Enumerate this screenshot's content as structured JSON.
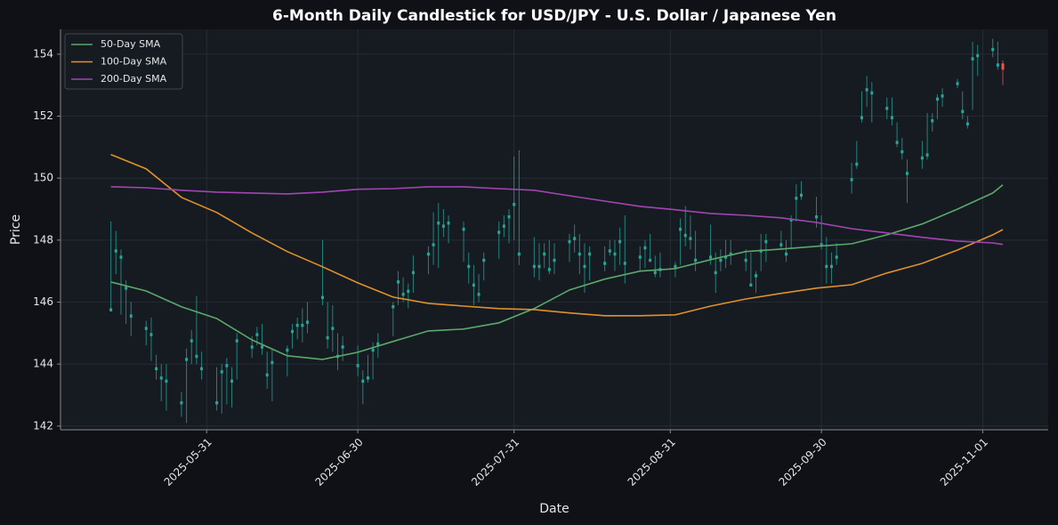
{
  "chart_data": {
    "type": "candlestick",
    "title": "6-Month Daily Candlestick for USD/JPY - U.S. Dollar / Japanese Yen",
    "x_label": "Date",
    "y_label": "Price",
    "x": [
      "2025-05-12",
      "2025-05-13",
      "2025-05-14",
      "2025-05-15",
      "2025-05-16",
      "2025-05-19",
      "2025-05-20",
      "2025-05-21",
      "2025-05-22",
      "2025-05-23",
      "2025-05-26",
      "2025-05-27",
      "2025-05-28",
      "2025-05-29",
      "2025-05-30",
      "2025-06-02",
      "2025-06-03",
      "2025-06-04",
      "2025-06-05",
      "2025-06-06",
      "2025-06-09",
      "2025-06-10",
      "2025-06-11",
      "2025-06-12",
      "2025-06-13",
      "2025-06-16",
      "2025-06-17",
      "2025-06-18",
      "2025-06-19",
      "2025-06-20",
      "2025-06-23",
      "2025-06-24",
      "2025-06-25",
      "2025-06-26",
      "2025-06-27",
      "2025-06-30",
      "2025-07-01",
      "2025-07-02",
      "2025-07-03",
      "2025-07-04",
      "2025-07-07",
      "2025-07-08",
      "2025-07-09",
      "2025-07-10",
      "2025-07-11",
      "2025-07-14",
      "2025-07-15",
      "2025-07-16",
      "2025-07-17",
      "2025-07-18",
      "2025-07-21",
      "2025-07-22",
      "2025-07-23",
      "2025-07-24",
      "2025-07-25",
      "2025-07-28",
      "2025-07-29",
      "2025-07-30",
      "2025-07-31",
      "2025-08-01",
      "2025-08-04",
      "2025-08-05",
      "2025-08-06",
      "2025-08-07",
      "2025-08-08",
      "2025-08-11",
      "2025-08-12",
      "2025-08-13",
      "2025-08-14",
      "2025-08-15",
      "2025-08-18",
      "2025-08-19",
      "2025-08-20",
      "2025-08-21",
      "2025-08-22",
      "2025-08-25",
      "2025-08-26",
      "2025-08-27",
      "2025-08-28",
      "2025-08-29",
      "2025-09-01",
      "2025-09-02",
      "2025-09-03",
      "2025-09-04",
      "2025-09-05",
      "2025-09-08",
      "2025-09-09",
      "2025-09-10",
      "2025-09-11",
      "2025-09-12",
      "2025-09-15",
      "2025-09-16",
      "2025-09-17",
      "2025-09-18",
      "2025-09-19",
      "2025-09-22",
      "2025-09-23",
      "2025-09-24",
      "2025-09-25",
      "2025-09-26",
      "2025-09-29",
      "2025-09-30",
      "2025-10-01",
      "2025-10-02",
      "2025-10-03",
      "2025-10-06",
      "2025-10-07",
      "2025-10-08",
      "2025-10-09",
      "2025-10-10",
      "2025-10-13",
      "2025-10-14",
      "2025-10-15",
      "2025-10-16",
      "2025-10-17",
      "2025-10-20",
      "2025-10-21",
      "2025-10-22",
      "2025-10-23",
      "2025-10-24",
      "2025-10-27",
      "2025-10-28",
      "2025-10-29",
      "2025-10-30",
      "2025-10-31",
      "2025-11-03",
      "2025-11-04",
      "2025-11-05"
    ],
    "open": [
      145.7,
      147.6,
      147.4,
      146.4,
      145.5,
      145.1,
      144.9,
      143.8,
      143.5,
      143.4,
      142.7,
      144.1,
      144.7,
      144.2,
      143.8,
      142.7,
      143.7,
      143.9,
      143.4,
      144.7,
      144.5,
      144.9,
      144.5,
      143.6,
      144.0,
      144.4,
      145.0,
      145.2,
      145.2,
      145.3,
      146.1,
      144.8,
      145.1,
      144.2,
      144.5,
      143.9,
      143.4,
      143.5,
      144.4,
      144.6,
      145.8,
      146.6,
      146.2,
      146.3,
      146.9,
      147.5,
      147.8,
      148.5,
      148.4,
      148.5,
      148.3,
      147.1,
      146.5,
      146.2,
      147.3,
      148.2,
      148.4,
      148.7,
      149.1,
      147.5,
      147.1,
      147.1,
      147.5,
      147.0,
      147.3,
      147.9,
      148.0,
      147.5,
      147.1,
      147.5,
      147.2,
      147.6,
      147.5,
      147.9,
      147.2,
      147.4,
      147.7,
      147.3,
      146.9,
      147.0,
      147.1,
      148.3,
      148.1,
      148.0,
      147.3,
      147.4,
      146.9,
      147.3,
      147.4,
      147.5,
      147.3,
      146.5,
      146.8,
      147.6,
      147.9,
      147.8,
      147.5,
      148.6,
      149.3,
      149.4,
      148.7,
      147.8,
      147.1,
      147.1,
      147.4,
      149.9,
      150.4,
      151.9,
      152.8,
      152.7,
      152.2,
      151.9,
      151.1,
      150.8,
      150.1,
      150.6,
      150.7,
      151.8,
      152.5,
      152.6,
      153.0,
      152.1,
      151.7,
      153.8,
      153.9,
      154.1,
      153.6,
      153.7
    ],
    "high": [
      148.6,
      148.3,
      147.7,
      146.7,
      146.0,
      145.4,
      145.5,
      144.3,
      144.0,
      144.0,
      143.1,
      144.5,
      145.1,
      146.2,
      144.4,
      143.9,
      144.0,
      144.2,
      143.9,
      145.0,
      144.9,
      145.2,
      145.3,
      144.4,
      144.5,
      144.6,
      145.3,
      145.5,
      145.8,
      146.0,
      148.0,
      146.0,
      145.9,
      145.0,
      144.9,
      144.6,
      143.8,
      144.3,
      144.7,
      145.0,
      146.0,
      147.0,
      146.8,
      146.6,
      147.5,
      147.8,
      148.9,
      149.2,
      149.0,
      148.8,
      148.6,
      147.6,
      147.2,
      146.9,
      147.6,
      148.6,
      148.8,
      149.0,
      150.7,
      150.9,
      148.1,
      147.9,
      147.9,
      148.0,
      147.9,
      148.2,
      148.5,
      148.2,
      147.9,
      147.8,
      147.8,
      148.0,
      148.0,
      148.4,
      148.8,
      147.8,
      148.0,
      148.2,
      147.5,
      147.6,
      147.3,
      148.7,
      149.1,
      148.8,
      148.3,
      148.5,
      147.6,
      147.7,
      148.0,
      148.0,
      147.7,
      147.6,
      147.0,
      148.2,
      148.2,
      148.3,
      148.0,
      148.8,
      149.8,
      149.9,
      149.4,
      148.8,
      148.1,
      147.6,
      147.9,
      150.5,
      151.2,
      152.8,
      153.3,
      153.1,
      152.6,
      152.6,
      151.8,
      151.3,
      150.6,
      151.2,
      152.1,
      152.1,
      152.7,
      152.9,
      153.2,
      152.8,
      152.0,
      154.4,
      154.3,
      154.5,
      154.4,
      153.8
    ],
    "low": [
      145.7,
      146.9,
      145.6,
      145.3,
      144.9,
      144.6,
      144.1,
      143.5,
      142.8,
      142.5,
      142.3,
      142.1,
      144.0,
      144.0,
      143.5,
      142.5,
      142.4,
      142.7,
      142.6,
      143.5,
      144.2,
      144.6,
      144.3,
      143.2,
      142.8,
      143.6,
      144.5,
      144.8,
      144.7,
      145.0,
      145.9,
      144.5,
      144.4,
      143.8,
      144.1,
      143.6,
      142.7,
      143.4,
      143.5,
      144.2,
      144.9,
      145.9,
      146.0,
      145.8,
      146.3,
      146.9,
      147.2,
      147.1,
      148.1,
      147.9,
      147.3,
      146.6,
      145.9,
      146.0,
      146.7,
      147.4,
      148.1,
      147.9,
      148.0,
      147.2,
      146.8,
      146.7,
      147.1,
      146.9,
      146.9,
      147.3,
      147.6,
      146.9,
      146.3,
      146.7,
      147.0,
      147.5,
      147.0,
      147.2,
      146.6,
      147.0,
      147.1,
      147.3,
      146.8,
      146.8,
      146.8,
      147.2,
      147.8,
      147.7,
      147.0,
      147.2,
      146.3,
      147.0,
      147.1,
      147.2,
      147.0,
      146.5,
      146.3,
      147.0,
      147.3,
      147.7,
      147.3,
      147.7,
      148.6,
      149.3,
      148.4,
      147.7,
      146.6,
      146.6,
      147.2,
      149.5,
      150.3,
      151.8,
      152.3,
      151.8,
      151.9,
      151.7,
      151.0,
      150.6,
      149.2,
      150.3,
      150.6,
      151.5,
      151.9,
      152.3,
      152.9,
      151.9,
      151.6,
      152.2,
      153.3,
      153.9,
      153.5,
      153.0
    ],
    "close": [
      145.8,
      147.7,
      147.5,
      146.5,
      145.6,
      145.2,
      145.0,
      143.9,
      143.6,
      143.5,
      142.8,
      144.2,
      144.8,
      144.3,
      143.9,
      142.8,
      143.8,
      144.0,
      143.5,
      144.8,
      144.6,
      145.0,
      144.6,
      143.7,
      144.1,
      144.5,
      145.1,
      145.3,
      145.3,
      145.4,
      146.2,
      144.9,
      145.2,
      144.3,
      144.6,
      144.0,
      143.5,
      143.6,
      144.5,
      144.7,
      145.9,
      146.7,
      146.3,
      146.4,
      147.0,
      147.6,
      147.9,
      148.6,
      148.5,
      148.6,
      148.4,
      147.2,
      146.6,
      146.3,
      147.4,
      148.3,
      148.5,
      148.8,
      149.2,
      147.6,
      147.2,
      147.2,
      147.6,
      147.1,
      147.4,
      148.0,
      148.1,
      147.6,
      147.2,
      147.6,
      147.3,
      147.7,
      147.6,
      148.0,
      147.3,
      147.5,
      147.8,
      147.4,
      147.0,
      147.1,
      147.2,
      148.4,
      148.2,
      148.1,
      147.4,
      147.5,
      147.0,
      147.4,
      147.5,
      147.6,
      147.4,
      146.6,
      146.9,
      147.7,
      148.0,
      147.9,
      147.6,
      148.7,
      149.4,
      149.5,
      148.8,
      147.9,
      147.2,
      147.2,
      147.5,
      150.0,
      150.5,
      152.0,
      152.9,
      152.8,
      152.3,
      152.0,
      151.2,
      150.9,
      150.2,
      150.7,
      150.8,
      151.9,
      152.6,
      152.7,
      153.1,
      152.2,
      151.8,
      153.9,
      154.0,
      154.2,
      153.7,
      153.5
    ],
    "up_color": "#26a69a",
    "down_color": "#ef5350",
    "lines": [
      {
        "name": "50-Day SMA",
        "color": "#5aa86a",
        "x": [
          "2025-05-12",
          "2025-05-19",
          "2025-05-26",
          "2025-06-02",
          "2025-06-09",
          "2025-06-16",
          "2025-06-23",
          "2025-06-30",
          "2025-07-07",
          "2025-07-14",
          "2025-07-21",
          "2025-07-28",
          "2025-08-04",
          "2025-08-11",
          "2025-08-18",
          "2025-08-25",
          "2025-09-01",
          "2025-09-08",
          "2025-09-15",
          "2025-09-22",
          "2025-09-29",
          "2025-10-06",
          "2025-10-13",
          "2025-10-20",
          "2025-10-27",
          "2025-11-03",
          "2025-11-05"
        ],
        "values": [
          146.65,
          146.36,
          145.85,
          145.47,
          144.78,
          144.27,
          144.15,
          144.38,
          144.73,
          145.07,
          145.13,
          145.33,
          145.79,
          146.39,
          146.74,
          147.0,
          147.08,
          147.37,
          147.63,
          147.71,
          147.8,
          147.88,
          148.17,
          148.52,
          149.0,
          149.52,
          149.78
        ]
      },
      {
        "name": "100-Day SMA",
        "color": "#e0912b",
        "x": [
          "2025-05-12",
          "2025-05-19",
          "2025-05-26",
          "2025-06-02",
          "2025-06-09",
          "2025-06-16",
          "2025-06-23",
          "2025-06-30",
          "2025-07-07",
          "2025-07-14",
          "2025-07-21",
          "2025-07-28",
          "2025-08-04",
          "2025-08-11",
          "2025-08-18",
          "2025-08-25",
          "2025-09-01",
          "2025-09-08",
          "2025-09-15",
          "2025-09-22",
          "2025-09-29",
          "2025-10-06",
          "2025-10-13",
          "2025-10-20",
          "2025-10-27",
          "2025-11-03",
          "2025-11-05"
        ],
        "values": [
          150.76,
          150.3,
          149.38,
          148.89,
          148.23,
          147.63,
          147.14,
          146.62,
          146.16,
          145.96,
          145.87,
          145.79,
          145.76,
          145.65,
          145.56,
          145.56,
          145.59,
          145.87,
          146.1,
          146.28,
          146.45,
          146.56,
          146.94,
          147.25,
          147.68,
          148.17,
          148.34
        ]
      },
      {
        "name": "200-Day SMA",
        "color": "#a245b3",
        "x": [
          "2025-05-12",
          "2025-05-19",
          "2025-05-26",
          "2025-06-02",
          "2025-06-09",
          "2025-06-16",
          "2025-06-23",
          "2025-06-30",
          "2025-07-07",
          "2025-07-14",
          "2025-07-21",
          "2025-07-28",
          "2025-08-04",
          "2025-08-11",
          "2025-08-18",
          "2025-08-25",
          "2025-09-01",
          "2025-09-08",
          "2025-09-15",
          "2025-09-22",
          "2025-09-29",
          "2025-10-06",
          "2025-10-13",
          "2025-10-20",
          "2025-10-27",
          "2025-11-03",
          "2025-11-05"
        ],
        "values": [
          149.72,
          149.69,
          149.61,
          149.55,
          149.52,
          149.49,
          149.55,
          149.64,
          149.66,
          149.72,
          149.72,
          149.66,
          149.61,
          149.43,
          149.26,
          149.09,
          148.98,
          148.86,
          148.8,
          148.72,
          148.57,
          148.37,
          148.23,
          148.09,
          147.97,
          147.91,
          147.86
        ]
      }
    ],
    "xlim": [
      "2025-05-02",
      "2025-11-14"
    ],
    "xticks": [
      "2025-05-31",
      "2025-06-30",
      "2025-07-31",
      "2025-08-31",
      "2025-09-30",
      "2025-11-01"
    ],
    "ylim": [
      141.88,
      154.8
    ],
    "yticks": [
      142,
      144,
      146,
      148,
      150,
      152,
      154
    ],
    "grid": true,
    "legend": "upper left"
  }
}
